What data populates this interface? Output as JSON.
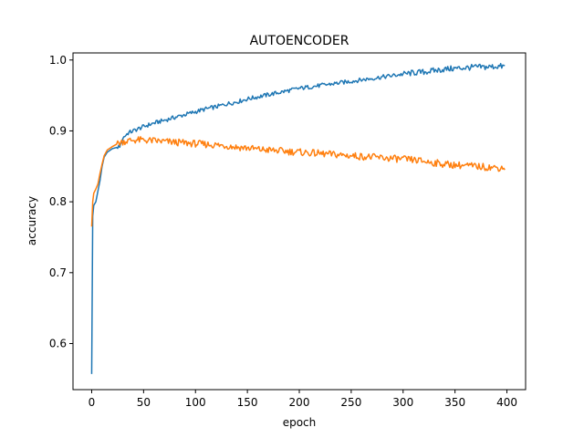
{
  "chart_data": {
    "type": "line",
    "title": "AUTOENCODER",
    "xlabel": "epoch",
    "ylabel": "accuracy",
    "xlim": [
      -18,
      418
    ],
    "ylim": [
      0.535,
      1.01
    ],
    "x_ticks": [
      0,
      50,
      100,
      150,
      200,
      250,
      300,
      350,
      400
    ],
    "y_ticks": [
      0.6,
      0.7,
      0.8,
      0.9,
      1.0
    ],
    "y_tick_labels": [
      "0.6",
      "0.7",
      "0.8",
      "0.9",
      "1.0"
    ],
    "grid": false,
    "legend": "none",
    "series": [
      {
        "color": "#1f77b4",
        "points": [
          [
            0,
            0.557
          ],
          [
            1,
            0.78
          ],
          [
            2,
            0.795
          ],
          [
            4,
            0.8
          ],
          [
            6,
            0.815
          ],
          [
            8,
            0.83
          ],
          [
            10,
            0.85
          ],
          [
            12,
            0.863
          ],
          [
            15,
            0.87
          ],
          [
            20,
            0.875
          ],
          [
            25,
            0.877
          ],
          [
            28,
            0.88
          ],
          [
            30,
            0.89
          ],
          [
            35,
            0.897
          ],
          [
            40,
            0.9
          ],
          [
            50,
            0.906
          ],
          [
            60,
            0.911
          ],
          [
            70,
            0.915
          ],
          [
            80,
            0.919
          ],
          [
            90,
            0.923
          ],
          [
            100,
            0.927
          ],
          [
            110,
            0.931
          ],
          [
            120,
            0.934
          ],
          [
            130,
            0.938
          ],
          [
            140,
            0.941
          ],
          [
            150,
            0.945
          ],
          [
            160,
            0.948
          ],
          [
            170,
            0.951
          ],
          [
            180,
            0.954
          ],
          [
            190,
            0.957
          ],
          [
            200,
            0.96
          ],
          [
            210,
            0.962
          ],
          [
            220,
            0.964
          ],
          [
            230,
            0.966
          ],
          [
            240,
            0.968
          ],
          [
            250,
            0.97
          ],
          [
            260,
            0.972
          ],
          [
            270,
            0.974
          ],
          [
            280,
            0.976
          ],
          [
            290,
            0.978
          ],
          [
            300,
            0.98
          ],
          [
            310,
            0.982
          ],
          [
            320,
            0.983
          ],
          [
            330,
            0.985
          ],
          [
            340,
            0.987
          ],
          [
            350,
            0.988
          ],
          [
            360,
            0.989
          ],
          [
            370,
            0.99
          ],
          [
            380,
            0.99
          ],
          [
            390,
            0.991
          ],
          [
            398,
            0.991
          ]
        ]
      },
      {
        "color": "#ff7f0e",
        "points": [
          [
            0,
            0.765
          ],
          [
            1,
            0.8
          ],
          [
            2,
            0.812
          ],
          [
            4,
            0.818
          ],
          [
            6,
            0.825
          ],
          [
            8,
            0.84
          ],
          [
            10,
            0.853
          ],
          [
            12,
            0.865
          ],
          [
            15,
            0.873
          ],
          [
            20,
            0.878
          ],
          [
            25,
            0.882
          ],
          [
            30,
            0.885
          ],
          [
            40,
            0.887
          ],
          [
            50,
            0.887
          ],
          [
            60,
            0.886
          ],
          [
            70,
            0.885
          ],
          [
            80,
            0.884
          ],
          [
            90,
            0.883
          ],
          [
            100,
            0.882
          ],
          [
            110,
            0.881
          ],
          [
            120,
            0.88
          ],
          [
            130,
            0.879
          ],
          [
            140,
            0.877
          ],
          [
            150,
            0.876
          ],
          [
            160,
            0.874
          ],
          [
            170,
            0.873
          ],
          [
            180,
            0.872
          ],
          [
            190,
            0.871
          ],
          [
            200,
            0.87
          ],
          [
            210,
            0.869
          ],
          [
            220,
            0.868
          ],
          [
            230,
            0.867
          ],
          [
            240,
            0.866
          ],
          [
            250,
            0.865
          ],
          [
            260,
            0.864
          ],
          [
            270,
            0.863
          ],
          [
            280,
            0.862
          ],
          [
            290,
            0.861
          ],
          [
            300,
            0.86
          ],
          [
            310,
            0.859
          ],
          [
            320,
            0.857
          ],
          [
            330,
            0.855
          ],
          [
            340,
            0.853
          ],
          [
            350,
            0.852
          ],
          [
            360,
            0.851
          ],
          [
            370,
            0.85
          ],
          [
            380,
            0.849
          ],
          [
            390,
            0.848
          ],
          [
            398,
            0.848
          ]
        ]
      }
    ]
  }
}
